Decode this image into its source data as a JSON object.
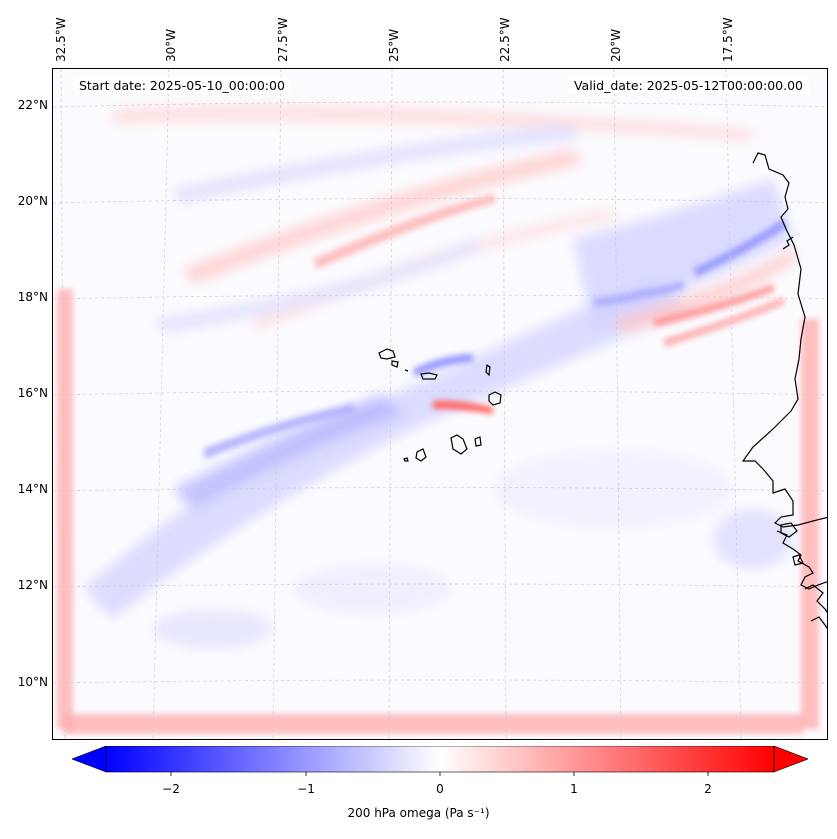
{
  "map": {
    "start_date": "Start date: 2025-05-10_00:00:00",
    "valid_date": "Valid_date: 2025-05-12T00:00:00.00",
    "lon_labels": [
      "32.5°W",
      "30°W",
      "27.5°W",
      "25°W",
      "22.5°W",
      "20°W",
      "17.5°W"
    ],
    "lat_labels": [
      "22°N",
      "20°N",
      "18°N",
      "16°N",
      "14°N",
      "12°N",
      "10°N"
    ],
    "extent": {
      "lon_min": -33.0,
      "lon_max": -15.7,
      "lat_min": 8.9,
      "lat_max": 22.8
    },
    "features": [
      "Cape Verde islands",
      "West African coastline"
    ]
  },
  "colorbar": {
    "title": "200 hPa omega (Pa s⁻¹)",
    "ticks": [
      "−2",
      "−1",
      "0",
      "1",
      "2"
    ],
    "tick_values": [
      -2,
      -1,
      0,
      1,
      2
    ],
    "range": [
      -2.6,
      2.6
    ],
    "colormap": "bwr",
    "low_color": "#0000ff",
    "mid_color": "#ffffff",
    "high_color": "#ff0000",
    "extend": "both"
  },
  "colors": {
    "coast": "#000000",
    "grid": "#cccccc"
  }
}
